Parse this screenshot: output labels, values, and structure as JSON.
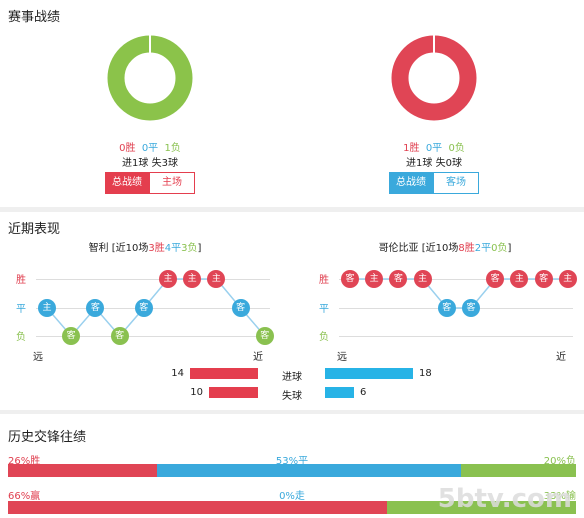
{
  "section1": {
    "title": "赛事战绩",
    "left": {
      "win": "0胜",
      "draw": "0平",
      "loss": "1负",
      "goals_line": "进1球 失3球",
      "tabs": [
        "总战绩",
        "主场"
      ]
    },
    "right": {
      "win": "1胜",
      "draw": "0平",
      "loss": "0负",
      "goals_line": "进1球 失0球",
      "tabs": [
        "总战绩",
        "客场"
      ]
    },
    "colors": {
      "left_donut": "#8bc34a",
      "right_donut": "#e04555"
    }
  },
  "section2": {
    "title": "近期表现",
    "left": {
      "team": "智利",
      "summary_prefix": "[近10场",
      "wins": "3胜",
      "draws": "4平",
      "losses": "3负",
      "summary_suffix": "]",
      "row_labels": [
        "胜",
        "平",
        "负"
      ],
      "far": "远",
      "near": "近",
      "results": [
        {
          "label": "主",
          "r": "平"
        },
        {
          "label": "客",
          "r": "负"
        },
        {
          "label": "客",
          "r": "平"
        },
        {
          "label": "客",
          "r": "负"
        },
        {
          "label": "客",
          "r": "平"
        },
        {
          "label": "主",
          "r": "胜"
        },
        {
          "label": "主",
          "r": "胜"
        },
        {
          "label": "主",
          "r": "胜"
        },
        {
          "label": "客",
          "r": "平"
        },
        {
          "label": "客",
          "r": "负"
        }
      ]
    },
    "right": {
      "team": "哥伦比亚",
      "summary_prefix": "[近10场",
      "wins": "8胜",
      "draws": "2平",
      "losses": "0负",
      "summary_suffix": "]",
      "row_labels": [
        "胜",
        "平",
        "负"
      ],
      "far": "远",
      "near": "近",
      "results": [
        {
          "label": "客",
          "r": "胜"
        },
        {
          "label": "主",
          "r": "胜"
        },
        {
          "label": "客",
          "r": "胜"
        },
        {
          "label": "主",
          "r": "胜"
        },
        {
          "label": "客",
          "r": "平"
        },
        {
          "label": "客",
          "r": "平"
        },
        {
          "label": "客",
          "r": "胜"
        },
        {
          "label": "主",
          "r": "胜"
        },
        {
          "label": "客",
          "r": "胜"
        },
        {
          "label": "主",
          "r": "胜"
        }
      ]
    },
    "stats": [
      {
        "label": "进球",
        "left": 14,
        "right": 18
      },
      {
        "label": "失球",
        "left": 10,
        "right": 6
      }
    ]
  },
  "section3": {
    "title": "历史交锋往绩",
    "row1": {
      "left": "26%胜",
      "mid": "53%平",
      "right": "20%负",
      "w": 26,
      "d": 53,
      "l": 20
    },
    "row2": {
      "left": "66%赢",
      "mid": "0%走",
      "right": "33%输",
      "w": 66,
      "d": 0,
      "l": 33
    }
  },
  "watermark": "5btv.com"
}
